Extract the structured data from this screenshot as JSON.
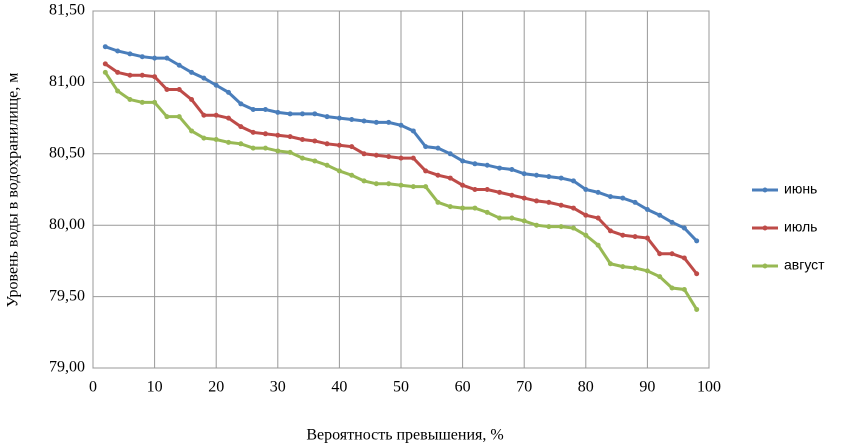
{
  "chart_data": {
    "type": "line",
    "x_label": "Вероятность превышения, %",
    "y_label": "Уровень воды в водохранилище, м",
    "x": [
      2,
      4,
      6,
      8,
      10,
      12,
      14,
      16,
      18,
      20,
      22,
      24,
      26,
      28,
      30,
      32,
      34,
      36,
      38,
      40,
      42,
      44,
      46,
      48,
      50,
      52,
      54,
      56,
      58,
      60,
      62,
      64,
      66,
      68,
      70,
      72,
      74,
      76,
      78,
      80,
      82,
      84,
      86,
      88,
      90,
      92,
      94,
      96,
      98
    ],
    "series": [
      {
        "name": "июнь",
        "color": "#4a7ebb",
        "values": [
          81.25,
          81.22,
          81.2,
          81.18,
          81.17,
          81.17,
          81.12,
          81.07,
          81.03,
          80.98,
          80.93,
          80.85,
          80.81,
          80.81,
          80.79,
          80.78,
          80.78,
          80.78,
          80.76,
          80.75,
          80.74,
          80.73,
          80.72,
          80.72,
          80.7,
          80.66,
          80.55,
          80.54,
          80.5,
          80.45,
          80.43,
          80.42,
          80.4,
          80.39,
          80.36,
          80.35,
          80.34,
          80.33,
          80.31,
          80.25,
          80.23,
          80.2,
          80.19,
          80.16,
          80.11,
          80.07,
          80.02,
          79.98,
          79.89
        ]
      },
      {
        "name": "июль",
        "color": "#be4b48",
        "values": [
          81.13,
          81.07,
          81.05,
          81.05,
          81.04,
          80.95,
          80.95,
          80.88,
          80.77,
          80.77,
          80.75,
          80.69,
          80.65,
          80.64,
          80.63,
          80.62,
          80.6,
          80.59,
          80.57,
          80.56,
          80.55,
          80.5,
          80.49,
          80.48,
          80.47,
          80.47,
          80.38,
          80.35,
          80.33,
          80.28,
          80.25,
          80.25,
          80.23,
          80.21,
          80.19,
          80.17,
          80.16,
          80.14,
          80.12,
          80.07,
          80.05,
          79.96,
          79.93,
          79.92,
          79.91,
          79.8,
          79.8,
          79.77,
          79.66
        ]
      },
      {
        "name": "август",
        "color": "#98b954",
        "values": [
          81.07,
          80.94,
          80.88,
          80.86,
          80.86,
          80.76,
          80.76,
          80.66,
          80.61,
          80.6,
          80.58,
          80.57,
          80.54,
          80.54,
          80.52,
          80.51,
          80.47,
          80.45,
          80.42,
          80.38,
          80.35,
          80.31,
          80.29,
          80.29,
          80.28,
          80.27,
          80.27,
          80.16,
          80.13,
          80.12,
          80.12,
          80.09,
          80.05,
          80.05,
          80.03,
          80,
          79.99,
          79.99,
          79.98,
          79.93,
          79.86,
          79.73,
          79.71,
          79.7,
          79.68,
          79.64,
          79.56,
          79.55,
          79.41
        ]
      }
    ],
    "xlim": [
      0,
      100
    ],
    "xticks": [
      0,
      10,
      20,
      30,
      40,
      50,
      60,
      70,
      80,
      90,
      100
    ],
    "ylim": [
      79,
      81.5
    ],
    "yticks": [
      {
        "value": 79,
        "label": "79,00"
      },
      {
        "value": 79.5,
        "label": "79,50"
      },
      {
        "value": 80,
        "label": "80,00"
      },
      {
        "value": 80.5,
        "label": "80,50"
      },
      {
        "value": 81,
        "label": "81,00"
      },
      {
        "value": 81.5,
        "label": "81,50"
      }
    ],
    "grid": true,
    "legend": "right"
  }
}
